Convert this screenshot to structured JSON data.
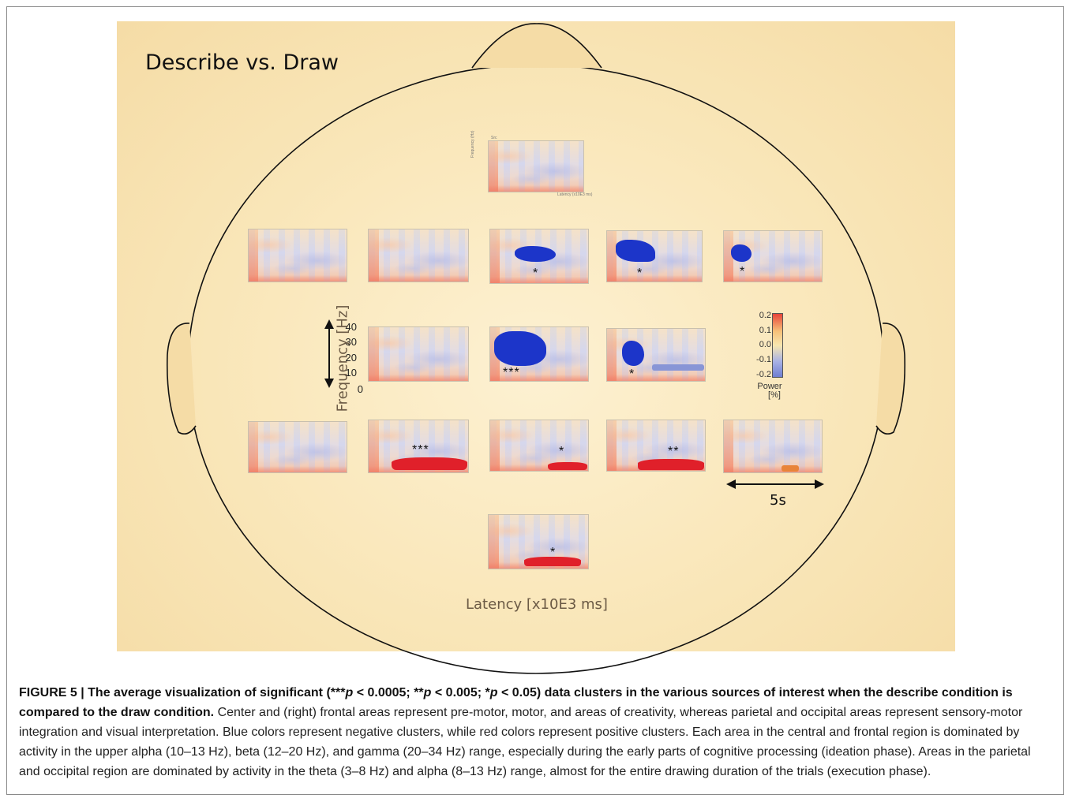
{
  "figure": {
    "title": "Describe vs. Draw",
    "y_axis_label": "Frequency [Hz]",
    "y_ticks": [
      "40",
      "30",
      "20",
      "10",
      "0"
    ],
    "x_axis_label": "Latency [x10E3 ms]",
    "scale_bar_label": "5s",
    "colorbar": {
      "ticks": [
        "0.2",
        "0.1",
        "0.0",
        "-0.1",
        "-0.2"
      ],
      "label_line1": "Power",
      "label_line2": "[%]",
      "colors": [
        "#e8443a",
        "#f6c27a",
        "#f7e6b0",
        "#a9b2e4",
        "#6f7fd2"
      ]
    },
    "panel_stars": {
      "r2c3": "*",
      "r2c4": "*",
      "r2c5": "*",
      "r3c3": "***",
      "r3c4": "*",
      "r4c2": "***",
      "r4c3": "*",
      "r4c4": "**",
      "r5c3": "*"
    },
    "tf_labels": {
      "corner": "Src",
      "axis": "Frequency (Hz)",
      "x": "Latency (x10E3 ms)"
    }
  },
  "caption": {
    "label": "FIGURE 5 | ",
    "bold_1": "The average visualization of significant (***",
    "p1": "p",
    "bold_2": " < 0.0005; **",
    "p2": "p",
    "bold_3": " < 0.005; *",
    "p3": "p",
    "bold_4": " < 0.05) data clusters in the various sources of interest when the describe condition is compared to the draw condition.",
    "body": " Center and (right) frontal areas represent pre-motor, motor, and areas of creativity, whereas parietal and occipital areas represent sensory-motor integration and visual interpretation. Blue colors represent negative clusters, while red colors represent positive clusters. Each area in the central and frontal region is dominated by activity in the upper alpha (10–13 Hz), beta (12–20 Hz), and gamma (20–34 Hz) range, especially during the early parts of cognitive processing (ideation phase). Areas in the parietal and occipital region are dominated by activity in the theta (3–8 Hz) and alpha (8–13 Hz) range, almost for the entire drawing duration of the trials (execution phase)."
  }
}
